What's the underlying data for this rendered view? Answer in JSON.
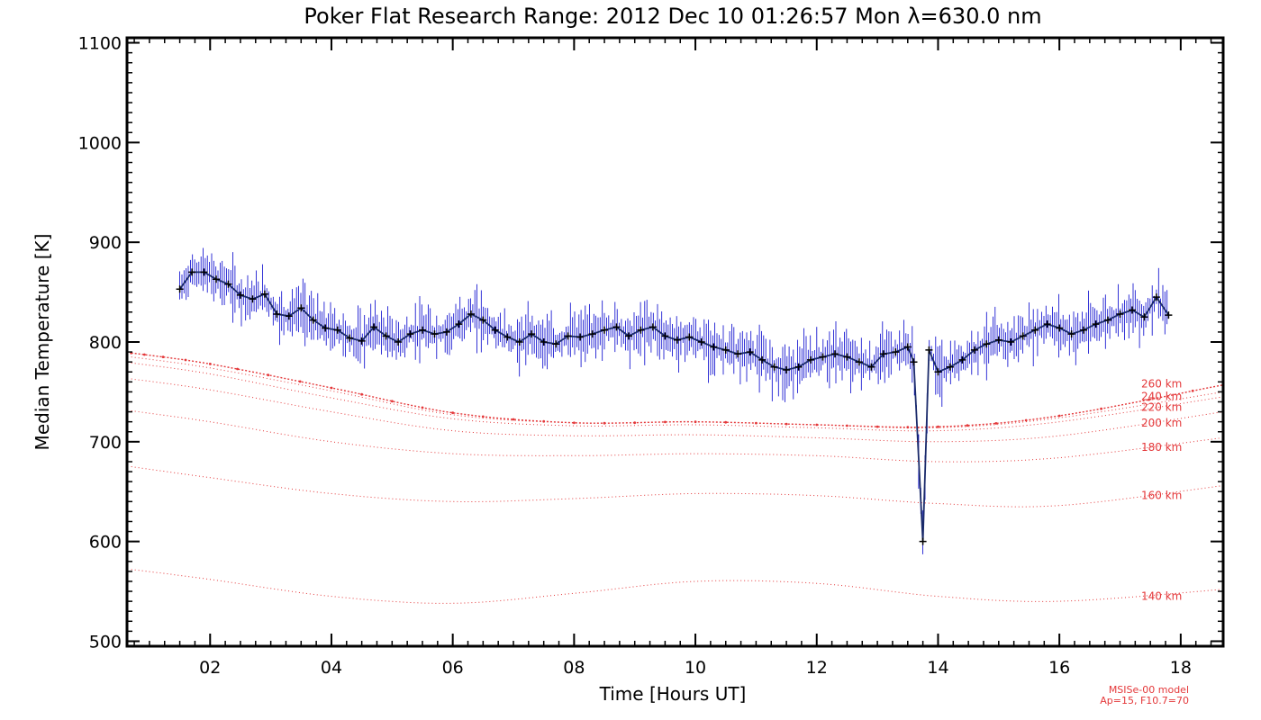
{
  "chart_data": {
    "type": "line",
    "title": "Poker Flat Research Range: 2012 Dec 10 01:26:57 Mon λ=630.0 nm",
    "xlabel": "Time [Hours UT]",
    "ylabel": "Median Temperature [K]",
    "xlim": [
      0.63,
      18.7
    ],
    "ylim": [
      495,
      1105
    ],
    "xticks": [
      2,
      4,
      6,
      8,
      10,
      12,
      14,
      16,
      18
    ],
    "xtick_labels": [
      "02",
      "04",
      "06",
      "08",
      "10",
      "12",
      "14",
      "16",
      "18"
    ],
    "yticks": [
      500,
      600,
      700,
      800,
      900,
      1000,
      1100
    ],
    "ytick_labels": [
      "500",
      "600",
      "700",
      "800",
      "900",
      "1000",
      "1100"
    ],
    "grid": false,
    "colors": {
      "measured": "#0000cc",
      "markers": "#000000",
      "model": "#e4383a"
    },
    "measured": {
      "x": [
        1.5,
        1.7,
        1.9,
        2.1,
        2.3,
        2.5,
        2.7,
        2.9,
        3.1,
        3.3,
        3.5,
        3.7,
        3.9,
        4.1,
        4.3,
        4.5,
        4.7,
        4.9,
        5.1,
        5.3,
        5.5,
        5.7,
        5.9,
        6.1,
        6.3,
        6.5,
        6.7,
        6.9,
        7.1,
        7.3,
        7.5,
        7.7,
        7.9,
        8.1,
        8.3,
        8.5,
        8.7,
        8.9,
        9.1,
        9.3,
        9.5,
        9.7,
        9.9,
        10.1,
        10.3,
        10.5,
        10.7,
        10.9,
        11.1,
        11.3,
        11.5,
        11.7,
        11.9,
        12.1,
        12.3,
        12.5,
        12.7,
        12.9,
        13.1,
        13.3,
        13.5,
        13.6,
        13.75,
        13.85,
        14.0,
        14.2,
        14.4,
        14.6,
        14.8,
        15.0,
        15.2,
        15.4,
        15.6,
        15.8,
        16.0,
        16.2,
        16.4,
        16.6,
        16.8,
        17.0,
        17.2,
        17.4,
        17.6,
        17.8
      ],
      "y": [
        853,
        870,
        870,
        863,
        858,
        847,
        843,
        848,
        828,
        826,
        834,
        822,
        814,
        812,
        804,
        801,
        815,
        806,
        800,
        808,
        812,
        808,
        810,
        818,
        828,
        822,
        812,
        805,
        800,
        808,
        800,
        798,
        806,
        805,
        808,
        812,
        815,
        806,
        812,
        815,
        806,
        802,
        805,
        800,
        795,
        792,
        788,
        790,
        782,
        775,
        772,
        775,
        782,
        785,
        788,
        785,
        780,
        775,
        788,
        790,
        795,
        780,
        600,
        792,
        770,
        775,
        782,
        792,
        798,
        802,
        800,
        806,
        812,
        818,
        814,
        808,
        812,
        818,
        822,
        828,
        832,
        825,
        845,
        827
      ]
    },
    "model": {
      "label": "MSISe-00 model",
      "params": "Ap=15, F10.7=70",
      "series": [
        {
          "name": "140 km",
          "x": [
            0.7,
            2,
            4,
            6,
            8,
            10,
            12,
            14,
            16,
            18.7
          ],
          "y": [
            572,
            562,
            545,
            538,
            548,
            560,
            558,
            545,
            540,
            552
          ]
        },
        {
          "name": "160 km",
          "x": [
            0.7,
            2,
            4,
            6,
            8,
            10,
            12,
            14,
            16,
            18.7
          ],
          "y": [
            675,
            664,
            648,
            640,
            643,
            648,
            646,
            638,
            636,
            656
          ]
        },
        {
          "name": "180 km",
          "x": [
            0.7,
            2,
            4,
            6,
            8,
            10,
            12,
            14,
            16,
            18.7
          ],
          "y": [
            731,
            720,
            700,
            688,
            686,
            688,
            686,
            680,
            684,
            704
          ]
        },
        {
          "name": "200 km",
          "x": [
            0.7,
            2,
            4,
            6,
            8,
            10,
            12,
            14,
            16,
            18.7
          ],
          "y": [
            763,
            752,
            730,
            711,
            706,
            707,
            704,
            700,
            706,
            730
          ]
        },
        {
          "name": "220 km",
          "x": [
            0.7,
            2,
            4,
            6,
            8,
            10,
            12,
            14,
            16,
            18.7
          ],
          "y": [
            779,
            768,
            744,
            723,
            716,
            717,
            714,
            711,
            720,
            745
          ]
        },
        {
          "name": "240 km",
          "x": [
            0.7,
            2,
            4,
            6,
            8,
            10,
            12,
            14,
            16,
            18.7
          ],
          "y": [
            785,
            774,
            751,
            727,
            719,
            720,
            717,
            714,
            724,
            750
          ]
        },
        {
          "name": "260 km",
          "x": [
            0.7,
            2,
            4,
            6,
            8,
            10,
            12,
            14,
            16,
            18.7
          ],
          "y": [
            789,
            778,
            754,
            729,
            719,
            720,
            717,
            715,
            726,
            757
          ]
        }
      ]
    }
  }
}
